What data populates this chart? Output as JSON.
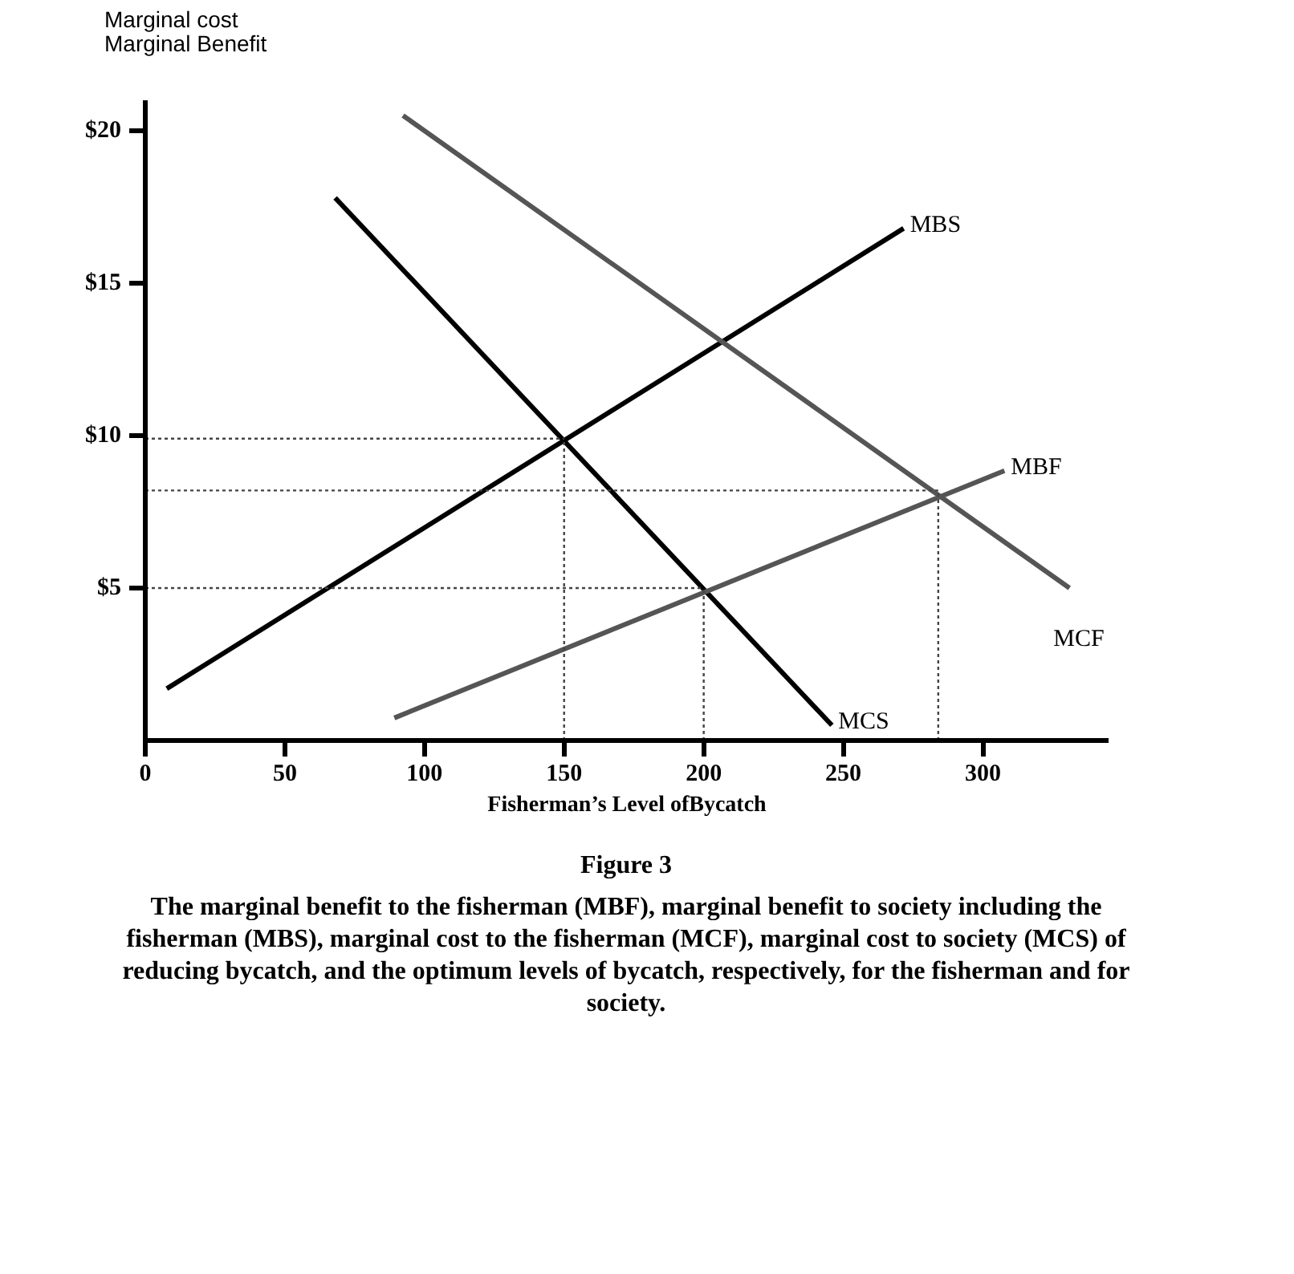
{
  "chart_data": {
    "type": "line",
    "ylabel": "Marginal cost\nMarginal Benefit",
    "xlabel": "Fisherman’s Level ofBycatch",
    "xlim": [
      0,
      345
    ],
    "ylim": [
      0,
      21
    ],
    "xticks": [
      0,
      50,
      100,
      150,
      200,
      250,
      300
    ],
    "yticks": [
      {
        "value": 5,
        "label": "$5"
      },
      {
        "value": 10,
        "label": "$10"
      },
      {
        "value": 15,
        "label": "$15"
      },
      {
        "value": 20,
        "label": "$20"
      }
    ],
    "grid": false,
    "marker": "none",
    "series": [
      {
        "name": "MBS",
        "color": "#000000",
        "x": [
          7.7,
          271.6
        ],
        "values": [
          1.7,
          16.8
        ]
      },
      {
        "name": "MCS",
        "color": "#000000",
        "x": [
          68,
          245.9
        ],
        "values": [
          17.8,
          0.5
        ]
      },
      {
        "name": "MCF",
        "color": "#555555",
        "x": [
          92.3,
          331
        ],
        "values": [
          20.5,
          5.0
        ]
      },
      {
        "name": "MBF",
        "color": "#555555",
        "x": [
          89.2,
          307.7
        ],
        "values": [
          0.74,
          8.85
        ]
      },
      {
        "color": "#444444",
        "line_style": "dotted",
        "x": [
          0,
          150
        ],
        "values": [
          9.9,
          9.9
        ]
      },
      {
        "color": "#444444",
        "line_style": "dotted",
        "x": [
          0,
          284
        ],
        "values": [
          8.2,
          8.2
        ]
      },
      {
        "color": "#444444",
        "line_style": "dotted",
        "x": [
          0,
          200
        ],
        "values": [
          5.0,
          5.0
        ]
      },
      {
        "color": "#444444",
        "line_style": "dotted",
        "x": [
          150,
          150
        ],
        "values": [
          0,
          9.9
        ]
      },
      {
        "color": "#444444",
        "line_style": "dotted",
        "x": [
          200,
          200
        ],
        "values": [
          0,
          5.0
        ]
      },
      {
        "color": "#444444",
        "line_style": "dotted",
        "x": [
          284,
          284
        ],
        "values": [
          0,
          8.2
        ]
      }
    ],
    "annotations": [
      "Figure 3",
      "The marginal benefit to the fisherman (MBF), marginal benefit to society including the fisherman (MBS), marginal cost to the fisherman (MCF), marginal cost to society (MCS) of reducing bycatch, and the optimum levels of bycatch, respectively, for the fisherman and for society."
    ]
  }
}
